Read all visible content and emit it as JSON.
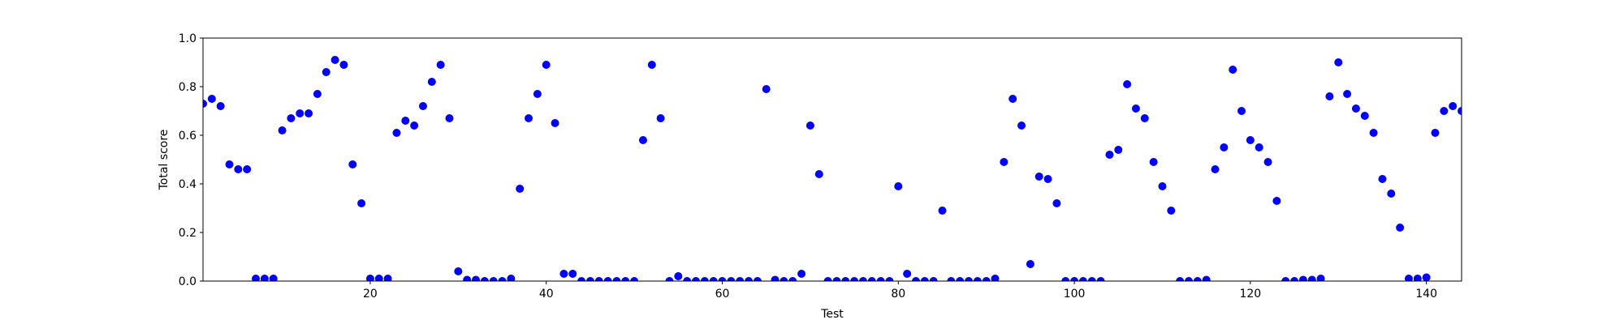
{
  "chart_data": {
    "type": "scatter",
    "x_label": "Test",
    "y_label": "Total score",
    "series": [
      {
        "color": "#0000ff",
        "x": [
          1,
          2,
          3,
          4,
          5,
          6,
          7,
          8,
          9,
          10,
          11,
          12,
          13,
          14,
          15,
          16,
          17,
          18,
          19,
          20,
          21,
          22,
          23,
          24,
          25,
          26,
          27,
          28,
          29,
          30,
          31,
          32,
          33,
          34,
          35,
          36,
          37,
          38,
          39,
          40,
          41,
          42,
          43,
          44,
          45,
          46,
          47,
          48,
          49,
          50,
          51,
          52,
          53,
          54,
          55,
          56,
          57,
          58,
          59,
          60,
          61,
          62,
          63,
          64,
          65,
          66,
          67,
          68,
          69,
          70,
          71,
          72,
          73,
          74,
          75,
          76,
          77,
          78,
          79,
          80,
          81,
          82,
          83,
          84,
          85,
          86,
          87,
          88,
          89,
          90,
          91,
          92,
          93,
          94,
          95,
          96,
          97,
          98,
          99,
          100,
          101,
          102,
          103,
          104,
          105,
          106,
          107,
          108,
          109,
          110,
          111,
          112,
          113,
          114,
          115,
          116,
          117,
          118,
          119,
          120,
          121,
          122,
          123,
          124,
          125,
          126,
          127,
          128,
          129,
          130,
          131,
          132,
          133,
          134,
          135,
          136,
          137,
          138,
          139,
          140,
          141,
          142,
          143,
          144
        ],
        "values": [
          0.73,
          0.75,
          0.72,
          0.48,
          0.46,
          0.46,
          0.01,
          0.01,
          0.01,
          0.62,
          0.67,
          0.69,
          0.69,
          0.77,
          0.86,
          0.91,
          0.89,
          0.48,
          0.32,
          0.01,
          0.01,
          0.01,
          0.61,
          0.66,
          0.64,
          0.72,
          0.82,
          0.89,
          0.67,
          0.04,
          0.005,
          0.005,
          0,
          0,
          0,
          0.01,
          0.38,
          0.67,
          0.77,
          0.89,
          0.65,
          0.03,
          0.03,
          0,
          0,
          0,
          0,
          0,
          0,
          0,
          0.58,
          0.89,
          0.67,
          0,
          0.02,
          0,
          0,
          0,
          0,
          0,
          0,
          0,
          0,
          0,
          0.79,
          0.005,
          0,
          0,
          0.03,
          0.64,
          0.44,
          0,
          0,
          0,
          0,
          0,
          0,
          0,
          0,
          0.39,
          0.03,
          0,
          0,
          0,
          0.29,
          0,
          0,
          0,
          0,
          0,
          0.01,
          0.49,
          0.75,
          0.64,
          0.07,
          0.43,
          0.42,
          0.32,
          0,
          0,
          0,
          0,
          0,
          0.52,
          0.54,
          0.81,
          0.71,
          0.67,
          0.49,
          0.39,
          0.29,
          0,
          0,
          0,
          0.005,
          0.46,
          0.55,
          0.87,
          0.7,
          0.58,
          0.55,
          0.49,
          0.33,
          0,
          0,
          0.005,
          0.005,
          0.01,
          0.76,
          0.9,
          0.77,
          0.71,
          0.68,
          0.61,
          0.42,
          0.36,
          0.22,
          0.01,
          0.01,
          0.015,
          0.61,
          0.7,
          0.72,
          0.7
        ]
      }
    ],
    "xlim": [
      1,
      144
    ],
    "xticks": [
      20,
      40,
      60,
      80,
      100,
      120,
      140
    ],
    "ylim": [
      0,
      1
    ],
    "yticks": [
      {
        "value": 0,
        "label": "0.0"
      },
      {
        "value": 0.2,
        "label": "0.2"
      },
      {
        "value": 0.4,
        "label": "0.4"
      },
      {
        "value": 0.6,
        "label": "0.6"
      },
      {
        "value": 0.8,
        "label": "0.8"
      },
      {
        "value": 1,
        "label": "1.0"
      }
    ]
  }
}
